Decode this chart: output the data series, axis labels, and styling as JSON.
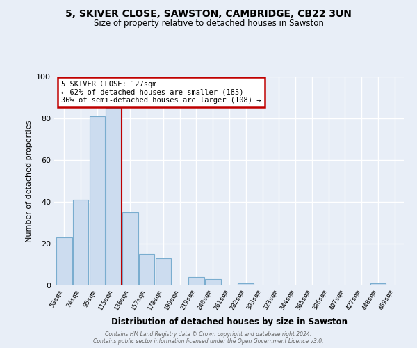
{
  "title": "5, SKIVER CLOSE, SAWSTON, CAMBRIDGE, CB22 3UN",
  "subtitle": "Size of property relative to detached houses in Sawston",
  "xlabel": "Distribution of detached houses by size in Sawston",
  "ylabel": "Number of detached properties",
  "bar_labels": [
    "53sqm",
    "74sqm",
    "95sqm",
    "115sqm",
    "136sqm",
    "157sqm",
    "178sqm",
    "199sqm",
    "219sqm",
    "240sqm",
    "261sqm",
    "282sqm",
    "303sqm",
    "323sqm",
    "344sqm",
    "365sqm",
    "386sqm",
    "407sqm",
    "427sqm",
    "448sqm",
    "469sqm"
  ],
  "bar_values": [
    23,
    41,
    81,
    85,
    35,
    15,
    13,
    0,
    4,
    3,
    0,
    1,
    0,
    0,
    0,
    0,
    0,
    0,
    0,
    1,
    0
  ],
  "bar_color": "#ccdcef",
  "bar_edge_color": "#7aadcf",
  "property_line_between": [
    3,
    4
  ],
  "annotation_line1": "5 SKIVER CLOSE: 127sqm",
  "annotation_line2": "← 62% of detached houses are smaller (185)",
  "annotation_line3": "36% of semi-detached houses are larger (108) →",
  "annotation_box_facecolor": "#ffffff",
  "annotation_box_edgecolor": "#c00000",
  "ylim": [
    0,
    100
  ],
  "yticks": [
    0,
    20,
    40,
    60,
    80,
    100
  ],
  "background_color": "#e8eef7",
  "plot_bg_color": "#e8eef7",
  "grid_color": "#ffffff",
  "footer_line1": "Contains HM Land Registry data © Crown copyright and database right 2024.",
  "footer_line2": "Contains public sector information licensed under the Open Government Licence v3.0."
}
